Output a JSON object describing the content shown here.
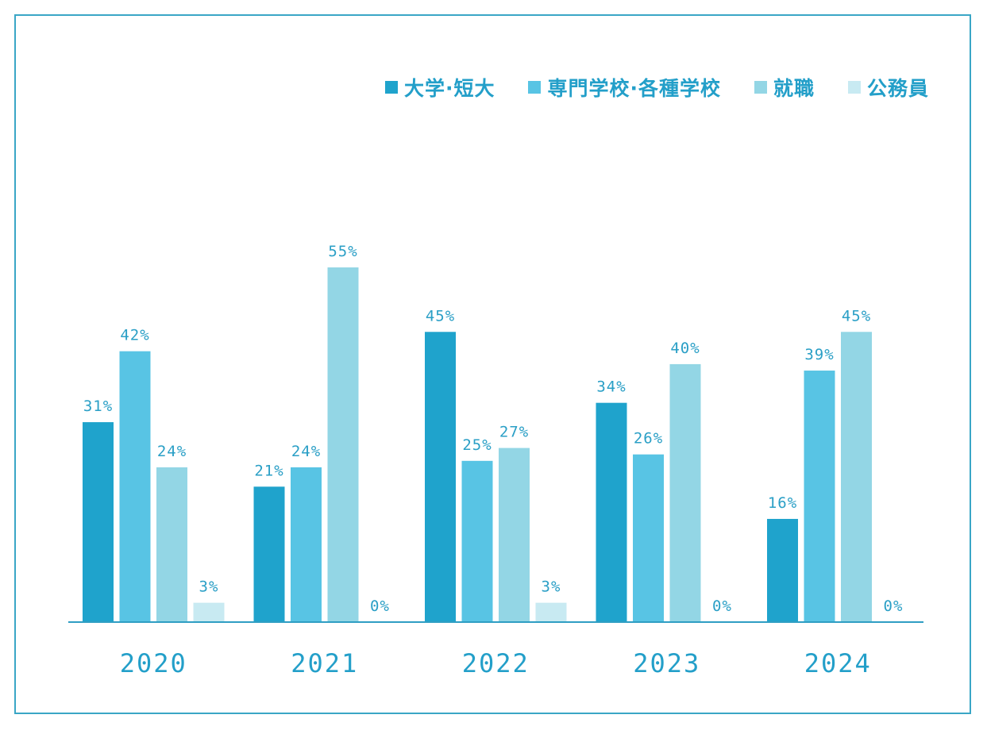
{
  "chart_data": {
    "type": "bar",
    "categories": [
      "2020",
      "2021",
      "2022",
      "2023",
      "2024"
    ],
    "series": [
      {
        "name": "大学·短大",
        "color": "#1fa3cc",
        "values": [
          31,
          21,
          45,
          34,
          16
        ]
      },
      {
        "name": "専門学校·各種学校",
        "color": "#58c4e4",
        "values": [
          42,
          24,
          25,
          26,
          39
        ]
      },
      {
        "name": "就職",
        "color": "#93d6e5",
        "values": [
          24,
          55,
          27,
          40,
          45
        ]
      },
      {
        "name": "公務員",
        "color": "#c8eaf2",
        "values": [
          3,
          0,
          3,
          0,
          0
        ]
      }
    ],
    "value_suffix": "%",
    "ylim": [
      0,
      55
    ],
    "grid": false,
    "legend_position": "top-right",
    "axis_color": "#2f9ec3",
    "label_color": "#2a9fc6"
  }
}
